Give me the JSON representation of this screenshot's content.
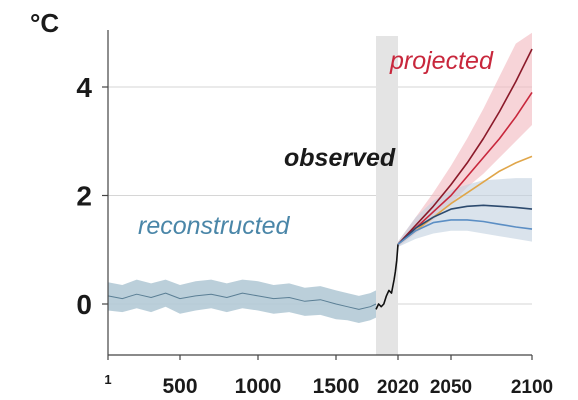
{
  "chart_data": {
    "type": "line",
    "y_unit": "°C",
    "y_ticks": [
      {
        "value": 0,
        "label": "0"
      },
      {
        "value": 2,
        "label": "2"
      },
      {
        "value": 4,
        "label": "4"
      }
    ],
    "x_ticks": [
      {
        "value": 1,
        "label": "1"
      },
      {
        "value": 500,
        "label": "500"
      },
      {
        "value": 1000,
        "label": "1000"
      },
      {
        "value": 1500,
        "label": "1500"
      },
      {
        "value": 2020,
        "label": "2020"
      },
      {
        "value": 2050,
        "label": "2050"
      },
      {
        "value": 2100,
        "label": "2100"
      }
    ],
    "ylim": [
      -0.9,
      5.0
    ],
    "grid": true,
    "observed_period": [
      1850,
      2020
    ],
    "annotations": {
      "projected": {
        "text": "projected",
        "color": "#c8273c"
      },
      "observed": {
        "text": "observed",
        "color": "#1a1a1a"
      },
      "reconstructed": {
        "text": "reconstructed",
        "color": "#4a86a8"
      }
    },
    "series": [
      {
        "key": "reconstructed",
        "color": "#5b7f95",
        "band_color": "#b4cad6",
        "x": [
          1,
          100,
          200,
          300,
          400,
          500,
          600,
          700,
          800,
          900,
          1000,
          1100,
          1200,
          1300,
          1400,
          1500,
          1600,
          1700,
          1800,
          1850
        ],
        "y": [
          0.15,
          0.1,
          0.18,
          0.12,
          0.2,
          0.1,
          0.15,
          0.18,
          0.12,
          0.2,
          0.15,
          0.1,
          0.12,
          0.05,
          0.08,
          0.0,
          -0.05,
          -0.1,
          -0.05,
          0.0
        ],
        "lower": [
          -0.12,
          -0.15,
          -0.08,
          -0.15,
          -0.05,
          -0.18,
          -0.12,
          -0.08,
          -0.15,
          -0.08,
          -0.12,
          -0.18,
          -0.15,
          -0.22,
          -0.2,
          -0.28,
          -0.3,
          -0.35,
          -0.3,
          -0.25
        ],
        "upper": [
          0.4,
          0.35,
          0.45,
          0.38,
          0.45,
          0.35,
          0.42,
          0.45,
          0.38,
          0.45,
          0.42,
          0.35,
          0.38,
          0.3,
          0.33,
          0.25,
          0.2,
          0.15,
          0.2,
          0.25
        ]
      },
      {
        "key": "observed",
        "color": "#111111",
        "x": [
          1850,
          1870,
          1890,
          1910,
          1930,
          1950,
          1970,
          1990,
          2000,
          2010,
          2020
        ],
        "y": [
          -0.1,
          0.0,
          -0.05,
          0.0,
          0.15,
          0.25,
          0.2,
          0.45,
          0.6,
          0.8,
          1.1
        ]
      },
      {
        "key": "projected-high",
        "color": "#8b1a2a",
        "band_color": "#f2b8be",
        "x": [
          2020,
          2030,
          2040,
          2050,
          2060,
          2070,
          2080,
          2090,
          2100
        ],
        "y": [
          1.1,
          1.45,
          1.8,
          2.2,
          2.6,
          3.05,
          3.55,
          4.1,
          4.7
        ],
        "lower": [
          1.05,
          1.3,
          1.55,
          1.85,
          2.15,
          2.4,
          2.7,
          3.0,
          3.3
        ],
        "upper": [
          1.15,
          1.6,
          2.05,
          2.55,
          3.05,
          3.6,
          4.2,
          4.8,
          5.0
        ]
      },
      {
        "key": "projected-mid-high",
        "color": "#c8273c",
        "x": [
          2020,
          2030,
          2040,
          2050,
          2060,
          2070,
          2080,
          2090,
          2100
        ],
        "y": [
          1.1,
          1.4,
          1.7,
          2.0,
          2.35,
          2.7,
          3.05,
          3.45,
          3.9
        ]
      },
      {
        "key": "projected-mid",
        "color": "#e0a64a",
        "x": [
          2020,
          2030,
          2040,
          2050,
          2060,
          2070,
          2080,
          2090,
          2100
        ],
        "y": [
          1.1,
          1.35,
          1.6,
          1.85,
          2.05,
          2.25,
          2.45,
          2.6,
          2.72
        ]
      },
      {
        "key": "projected-low-mid",
        "color": "#2c4a6e",
        "band_color": "#c2d0e0",
        "x": [
          2020,
          2030,
          2040,
          2050,
          2060,
          2070,
          2080,
          2090,
          2100
        ],
        "y": [
          1.1,
          1.4,
          1.6,
          1.75,
          1.8,
          1.82,
          1.8,
          1.78,
          1.75
        ],
        "lower": [
          1.05,
          1.2,
          1.3,
          1.35,
          1.35,
          1.3,
          1.25,
          1.2,
          1.15
        ],
        "upper": [
          1.15,
          1.6,
          1.9,
          2.1,
          2.2,
          2.28,
          2.3,
          2.32,
          2.32
        ]
      },
      {
        "key": "projected-low",
        "color": "#5b8ec4",
        "x": [
          2020,
          2030,
          2040,
          2050,
          2060,
          2070,
          2080,
          2090,
          2100
        ],
        "y": [
          1.1,
          1.35,
          1.5,
          1.55,
          1.55,
          1.52,
          1.47,
          1.42,
          1.38
        ]
      }
    ]
  }
}
